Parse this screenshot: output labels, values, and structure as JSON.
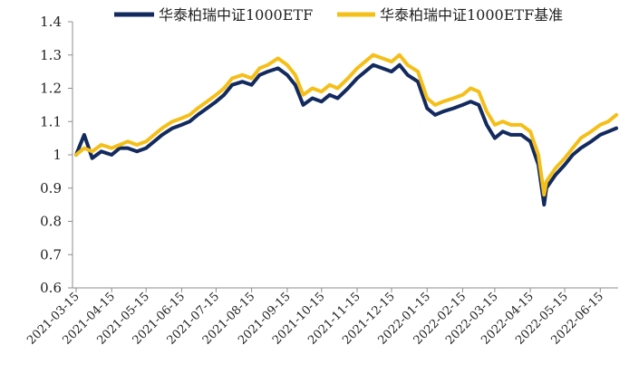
{
  "chart_data": {
    "type": "line",
    "title": "",
    "xlabel": "",
    "ylabel": "",
    "ylim": [
      0.6,
      1.4
    ],
    "yticks": [
      "0.6",
      "0.7",
      "0.8",
      "0.9",
      "1",
      "1.1",
      "1.2",
      "1.3",
      "1.4"
    ],
    "grid": false,
    "legend_position": "top",
    "x": [
      "2021-03-15",
      "2021-03-22",
      "2021-03-29",
      "2021-04-06",
      "2021-04-15",
      "2021-04-22",
      "2021-04-29",
      "2021-05-07",
      "2021-05-15",
      "2021-05-22",
      "2021-05-29",
      "2021-06-07",
      "2021-06-15",
      "2021-06-22",
      "2021-06-29",
      "2021-07-07",
      "2021-07-15",
      "2021-07-22",
      "2021-07-29",
      "2021-08-07",
      "2021-08-15",
      "2021-08-22",
      "2021-08-29",
      "2021-09-07",
      "2021-09-15",
      "2021-09-22",
      "2021-09-29",
      "2021-10-07",
      "2021-10-15",
      "2021-10-22",
      "2021-10-29",
      "2021-11-07",
      "2021-11-15",
      "2021-11-22",
      "2021-11-29",
      "2021-12-07",
      "2021-12-15",
      "2021-12-22",
      "2021-12-29",
      "2022-01-07",
      "2022-01-15",
      "2022-01-22",
      "2022-01-29",
      "2022-02-07",
      "2022-02-15",
      "2022-02-22",
      "2022-03-01",
      "2022-03-08",
      "2022-03-15",
      "2022-03-22",
      "2022-03-29",
      "2022-04-07",
      "2022-04-15",
      "2022-04-22",
      "2022-04-27",
      "2022-04-29",
      "2022-05-07",
      "2022-05-15",
      "2022-05-22",
      "2022-05-29",
      "2022-06-07",
      "2022-06-15",
      "2022-06-22",
      "2022-06-29"
    ],
    "xticks": [
      "2021-03-15",
      "2021-04-15",
      "2021-05-15",
      "2021-06-15",
      "2021-07-15",
      "2021-08-15",
      "2021-09-15",
      "2021-10-15",
      "2021-11-15",
      "2021-12-15",
      "2022-01-15",
      "2022-02-15",
      "2022-03-15",
      "2022-04-15",
      "2022-05-15",
      "2022-06-15"
    ],
    "series": [
      {
        "name": "华泰柏瑞中证1000ETF",
        "color": "#132a5e",
        "values": [
          1.0,
          1.06,
          0.99,
          1.01,
          1.0,
          1.02,
          1.02,
          1.01,
          1.02,
          1.04,
          1.06,
          1.08,
          1.09,
          1.1,
          1.12,
          1.14,
          1.16,
          1.18,
          1.21,
          1.22,
          1.21,
          1.24,
          1.25,
          1.26,
          1.24,
          1.21,
          1.15,
          1.17,
          1.16,
          1.18,
          1.17,
          1.2,
          1.23,
          1.25,
          1.27,
          1.26,
          1.25,
          1.27,
          1.24,
          1.22,
          1.14,
          1.12,
          1.13,
          1.14,
          1.15,
          1.16,
          1.15,
          1.09,
          1.05,
          1.07,
          1.06,
          1.06,
          1.04,
          0.97,
          0.85,
          0.9,
          0.94,
          0.97,
          1.0,
          1.02,
          1.04,
          1.06,
          1.07,
          1.08
        ]
      },
      {
        "name": "华泰柏瑞中证1000ETF基准",
        "color": "#f5bf19",
        "values": [
          1.0,
          1.02,
          1.01,
          1.03,
          1.02,
          1.03,
          1.04,
          1.03,
          1.04,
          1.06,
          1.08,
          1.1,
          1.11,
          1.12,
          1.14,
          1.16,
          1.18,
          1.2,
          1.23,
          1.24,
          1.23,
          1.26,
          1.27,
          1.29,
          1.27,
          1.24,
          1.18,
          1.2,
          1.19,
          1.21,
          1.2,
          1.23,
          1.26,
          1.28,
          1.3,
          1.29,
          1.28,
          1.3,
          1.27,
          1.25,
          1.17,
          1.15,
          1.16,
          1.17,
          1.18,
          1.2,
          1.19,
          1.13,
          1.09,
          1.1,
          1.09,
          1.09,
          1.07,
          1.0,
          0.88,
          0.92,
          0.96,
          0.99,
          1.02,
          1.05,
          1.07,
          1.09,
          1.1,
          1.12
        ]
      }
    ]
  }
}
